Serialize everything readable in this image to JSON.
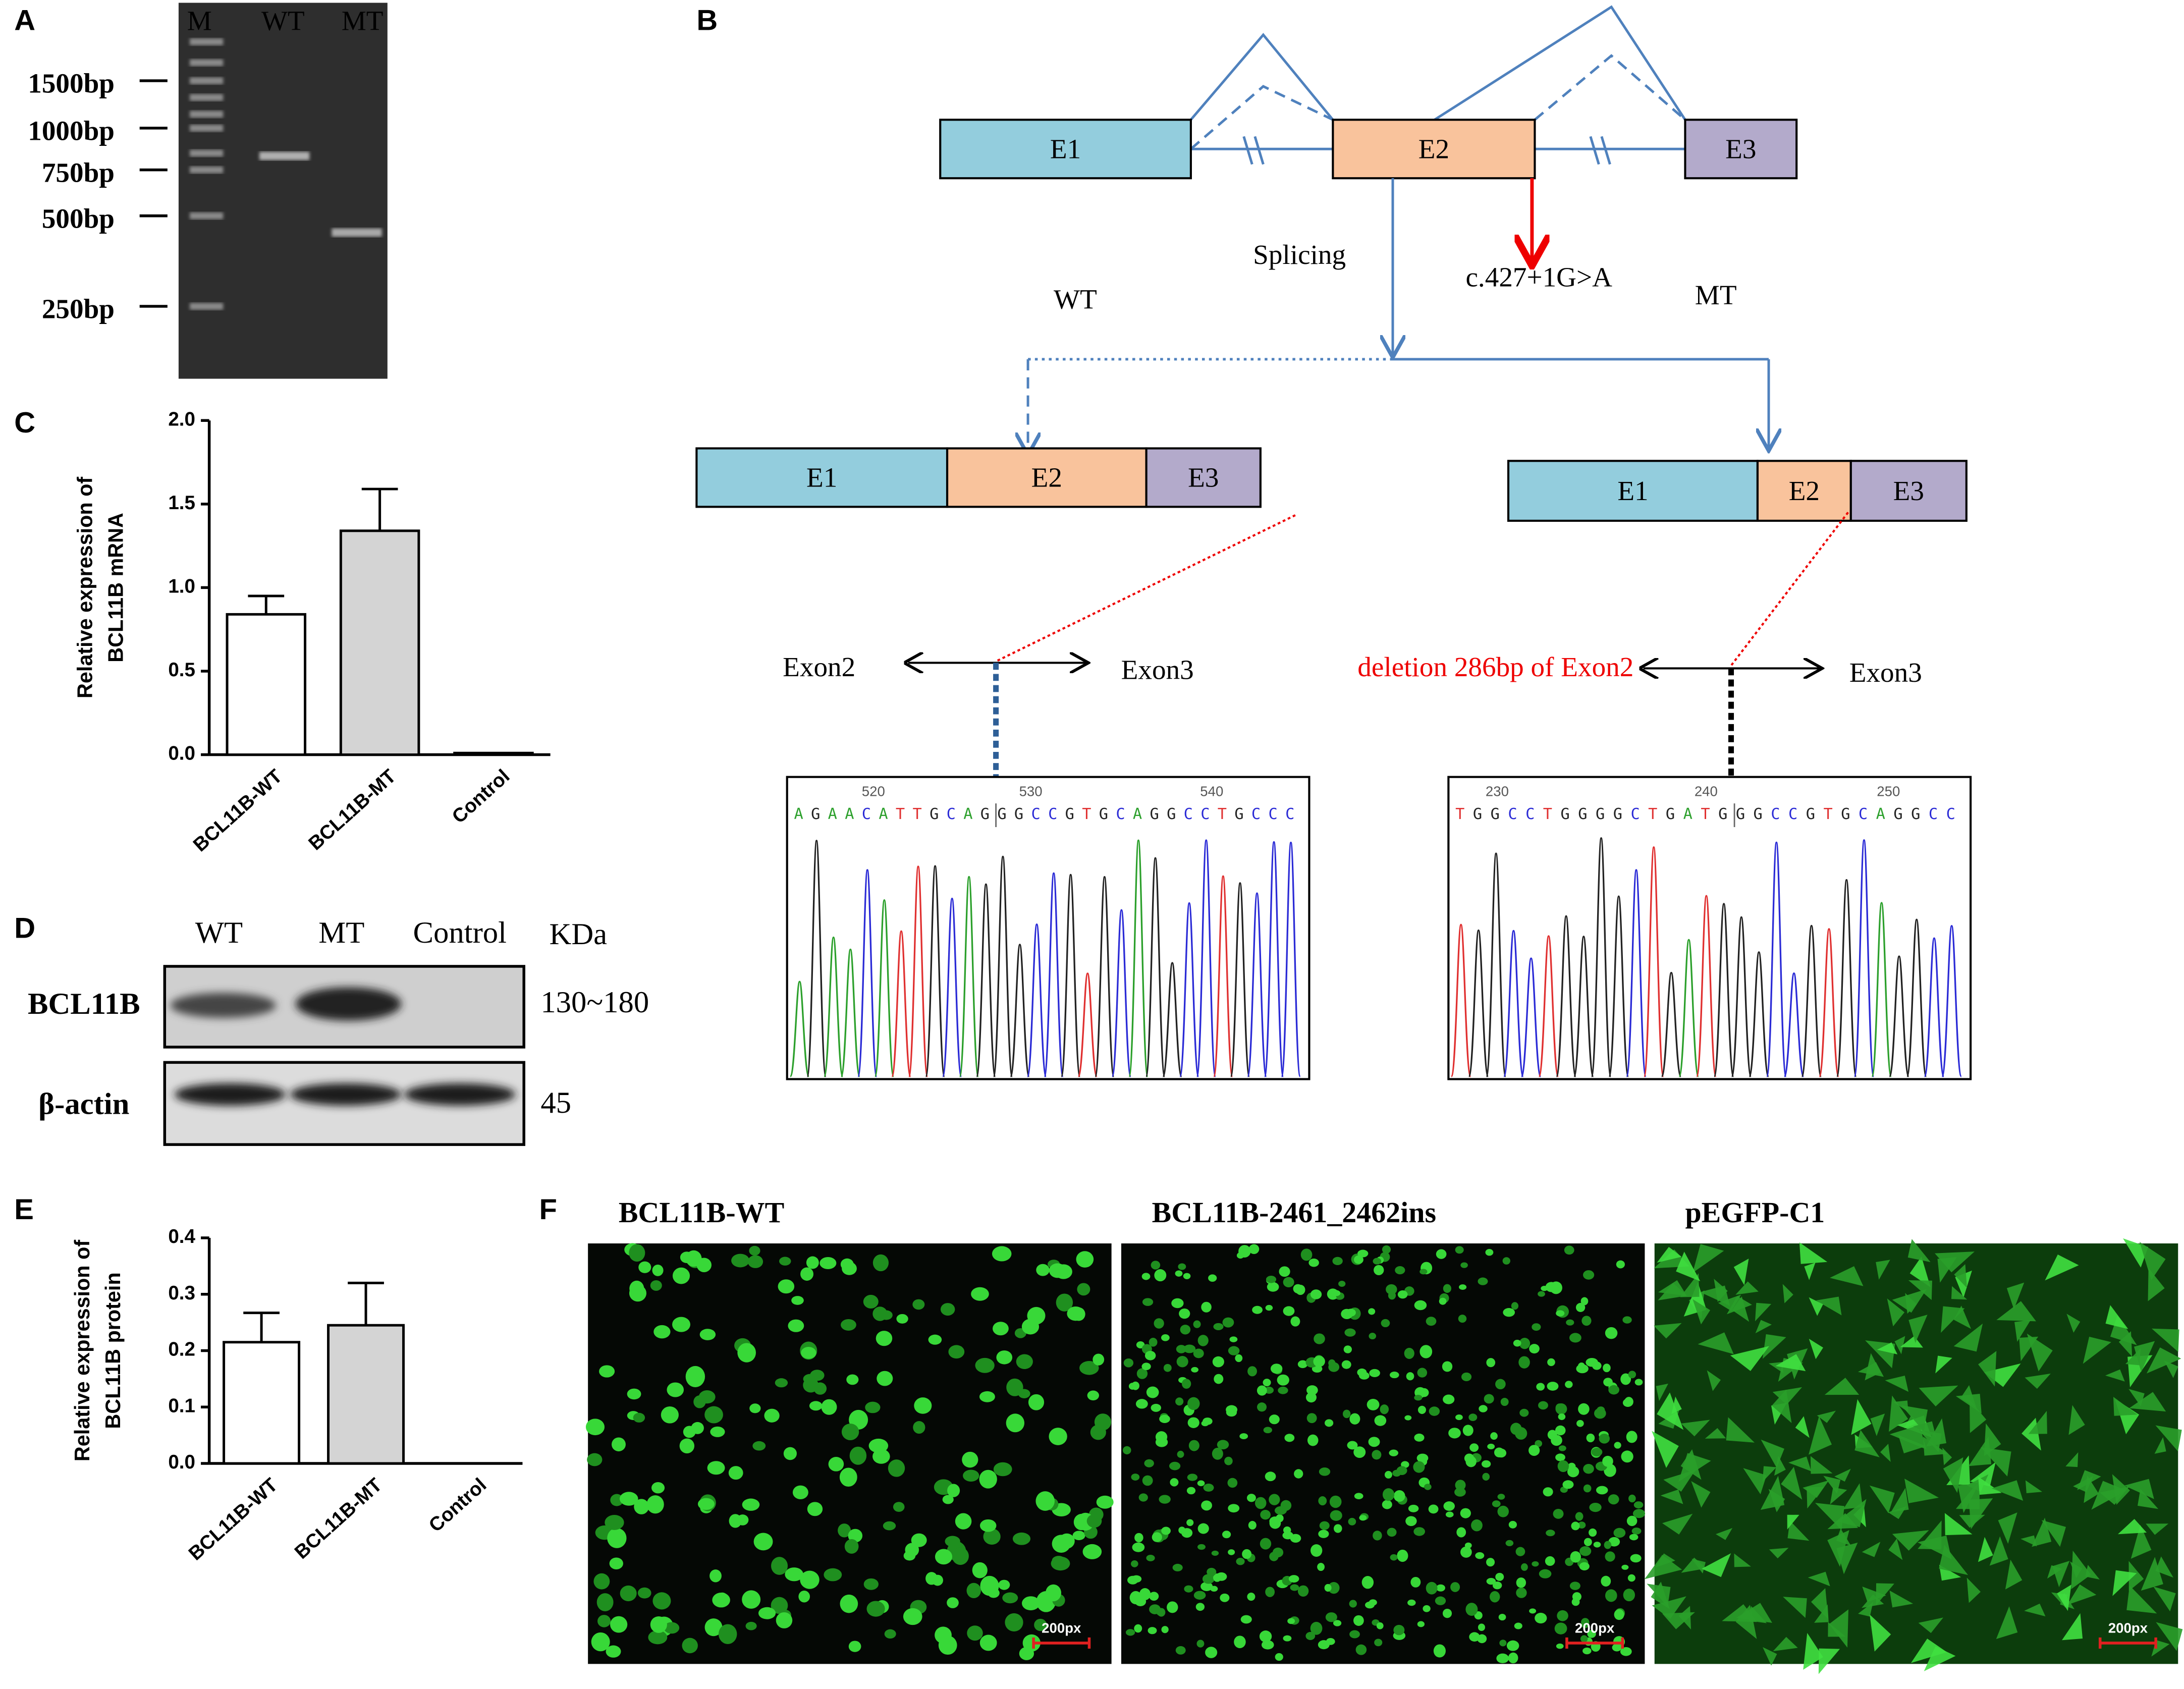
{
  "panel_labels": [
    "A",
    "B",
    "C",
    "D",
    "E",
    "F"
  ],
  "gel": {
    "lanes": [
      "M",
      "WT",
      "MT"
    ],
    "markers": [
      "1500bp",
      "1000bp",
      "750bp",
      "500bp",
      "250bp"
    ]
  },
  "diagram": {
    "genomic_exons": [
      "E1",
      "E2",
      "E3"
    ],
    "splicing": "Splicing",
    "variant": "c.427+1G>A",
    "wt_label": "WT",
    "mt_label": "MT",
    "wt_exons": [
      "E1",
      "E2",
      "E3"
    ],
    "mt_exons": [
      "E1",
      "E2",
      "E3"
    ],
    "wt_junction": {
      "left": "Exon2",
      "right": "Exon3"
    },
    "mt_junction": {
      "left": "deletion 286bp of  Exon2",
      "right": "Exon3"
    },
    "wt_trace": {
      "positions": [
        520,
        530,
        540
      ],
      "sequence": "AGAACATTGCAGGGCCGTGCAGGCCTGCCC"
    },
    "mt_trace": {
      "positions": [
        230,
        240,
        250
      ],
      "sequence": "TGGCCTGGGGCTGATGGGCCGTGCAGGCC"
    }
  },
  "western": {
    "lanes": [
      "WT",
      "MT",
      "Control"
    ],
    "unit": "KDa",
    "rows": [
      {
        "label": "BCL11B",
        "size": "130~180"
      },
      {
        "label": "β-actin",
        "size": 45
      }
    ]
  },
  "fluorescence": {
    "panels": [
      {
        "title": "BCL11B-WT",
        "scale": "200px"
      },
      {
        "title": "BCL11B-2461_2462ins",
        "scale": "200px"
      },
      {
        "title": "pEGFP-C1",
        "scale": "200px"
      }
    ]
  },
  "chart_data": [
    {
      "type": "bar",
      "ylabel": [
        "Relative expression of",
        "BCL11B mRNA"
      ],
      "categories": [
        "BCL11B-WT",
        "BCL11B-MT",
        "Control"
      ],
      "values": [
        0.84,
        1.34,
        0.01
      ],
      "errors": [
        0.11,
        0.25,
        null
      ],
      "colors": [
        "#ffffff",
        "#d4d4d4",
        "#ffffff"
      ],
      "ylim": [
        0,
        2
      ],
      "yticks": [
        {
          "value": 0,
          "label": "0.0"
        },
        {
          "value": 0.5,
          "label": "0.5"
        },
        {
          "value": 1,
          "label": "1.0"
        },
        {
          "value": 1.5,
          "label": "1.5"
        },
        {
          "value": 2,
          "label": "2.0"
        }
      ]
    },
    {
      "type": "bar",
      "ylabel": [
        "Relative expression of",
        "BCL11B protein"
      ],
      "categories": [
        "BCL11B-WT",
        "BCL11B-MT",
        "Control"
      ],
      "values": [
        0.215,
        0.245,
        0
      ],
      "errors": [
        0.052,
        0.075,
        null
      ],
      "colors": [
        "#ffffff",
        "#d4d4d4",
        "#ffffff"
      ],
      "ylim": [
        0,
        0.4
      ],
      "yticks": [
        {
          "value": 0,
          "label": "0.0"
        },
        {
          "value": 0.1,
          "label": "0.1"
        },
        {
          "value": 0.2,
          "label": "0.2"
        },
        {
          "value": 0.3,
          "label": "0.3"
        },
        {
          "value": 0.4,
          "label": "0.4"
        }
      ]
    }
  ]
}
